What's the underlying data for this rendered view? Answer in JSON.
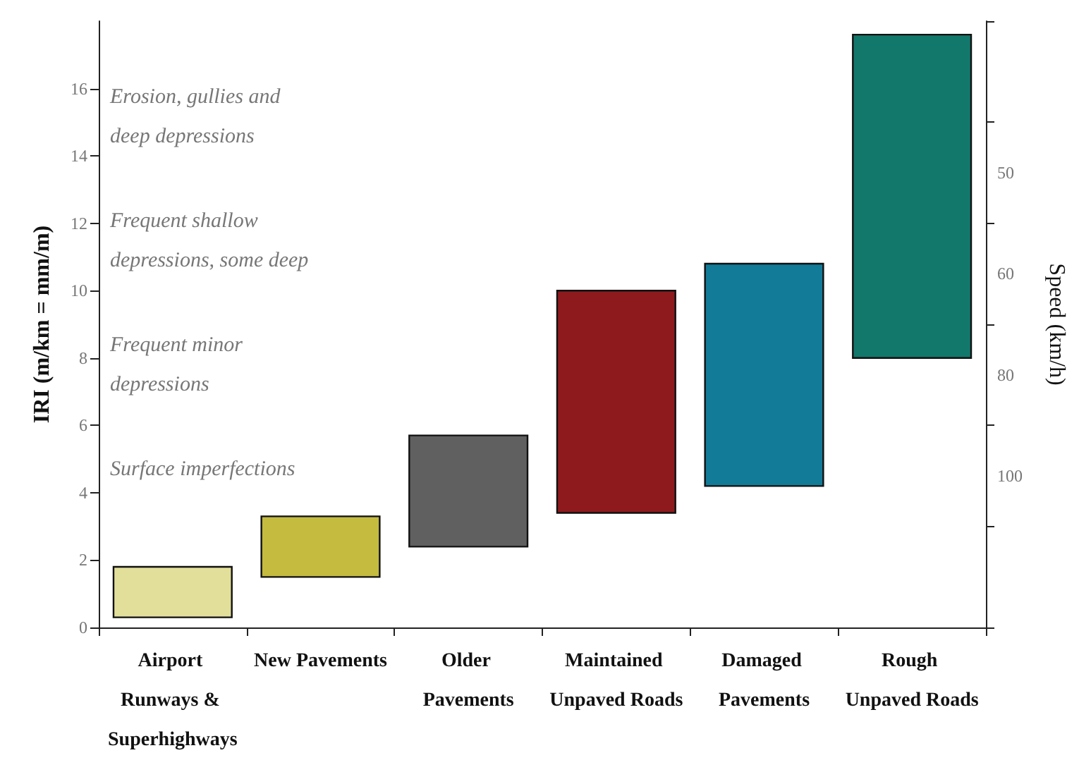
{
  "chart_data": {
    "type": "bar",
    "ylabel": "IRI (m/km = mm/m)",
    "y2label": "Speed (km/h)",
    "categories": [
      "Airport Runways & Superhighways",
      "New Pavements",
      "Older Pavements",
      "Maintained Unpaved Roads",
      "Damaged Pavements",
      "Rough Unpaved Roads"
    ],
    "base": [
      0.3,
      1.5,
      2.4,
      3.4,
      4.2,
      8
    ],
    "values": [
      1.5,
      1.8,
      3.3,
      6.6,
      6.6,
      9.6
    ],
    "colors": [
      "#e2df9a",
      "#c4bb3f",
      "#606060",
      "#8e1a1e",
      "#117b98",
      "#12786b"
    ],
    "ylim": [
      0,
      18
    ],
    "yticks": [
      0,
      2,
      4,
      6,
      8,
      10,
      12,
      14,
      16
    ],
    "y2_categories": [
      null,
      "50",
      "60",
      "80",
      "100",
      null
    ],
    "annotations": [
      "Erosion, gullies and deep depressions",
      "Frequent shallow depressions, some deep",
      "Frequent minor depressions",
      "Surface imperfections"
    ],
    "grid": false
  }
}
